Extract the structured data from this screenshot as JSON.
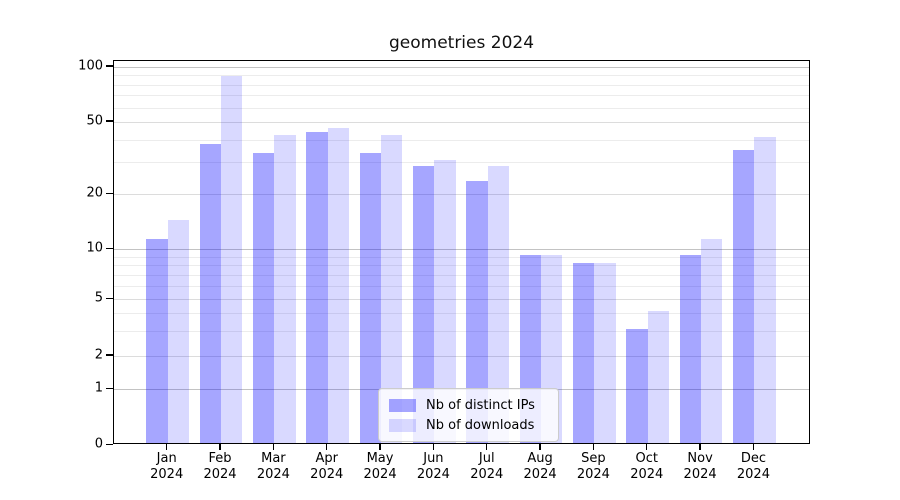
{
  "chart_data": {
    "type": "bar",
    "title": "geometries 2024",
    "categories": [
      "Jan 2024",
      "Feb 2024",
      "Mar 2024",
      "Apr 2024",
      "May 2024",
      "Jun 2024",
      "Jul 2024",
      "Aug 2024",
      "Sep 2024",
      "Oct 2024",
      "Nov 2024",
      "Dec 2024"
    ],
    "series": [
      {
        "name": "Nb of distinct IPs",
        "color": "rgba(0,0,255,0.35)",
        "values": [
          11,
          37,
          33,
          43,
          33,
          28,
          23,
          9,
          8,
          3,
          9,
          34
        ]
      },
      {
        "name": "Nb of downloads",
        "color": "rgba(0,0,255,0.15)",
        "values": [
          14,
          87,
          41,
          45,
          41,
          30,
          28,
          9,
          8,
          4,
          11,
          40
        ]
      }
    ],
    "yscale": "symlog",
    "yticks": [
      0,
      1,
      2,
      5,
      10,
      20,
      50,
      100
    ],
    "minor_yticks": [
      3,
      4,
      6,
      7,
      8,
      9,
      30,
      40,
      60,
      70,
      80,
      90
    ],
    "ylim": [
      0,
      110
    ],
    "xlabel": "",
    "ylabel": "",
    "grid": true,
    "legend_position": "lower center"
  },
  "colors": {
    "major_grid": "#c3c3c3",
    "mid_grid": "#dcdcdc",
    "minor_grid": "#ececec",
    "spine": "#000000",
    "background": "#ffffff"
  }
}
